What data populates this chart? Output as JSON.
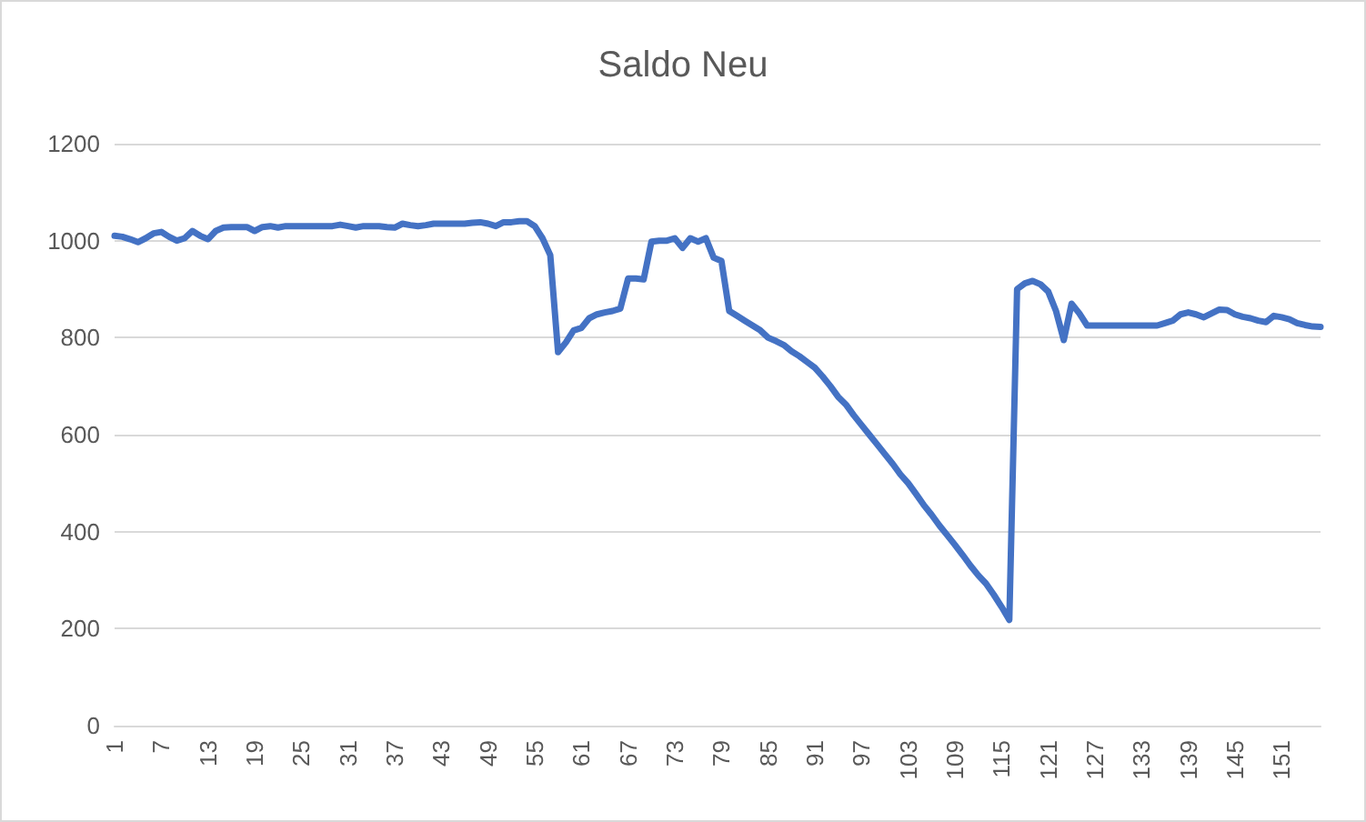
{
  "chart_data": {
    "type": "line",
    "title": "Saldo Neu",
    "categories": [
      "1",
      null,
      null,
      null,
      null,
      null,
      "7",
      null,
      null,
      null,
      null,
      null,
      "13",
      null,
      null,
      null,
      null,
      null,
      "19",
      null,
      null,
      null,
      null,
      null,
      "25",
      null,
      null,
      null,
      null,
      null,
      "31",
      null,
      null,
      null,
      null,
      null,
      "37",
      null,
      null,
      null,
      null,
      null,
      "43",
      null,
      null,
      null,
      null,
      null,
      "49",
      null,
      null,
      null,
      null,
      null,
      "55",
      null,
      null,
      null,
      null,
      null,
      "61",
      null,
      null,
      null,
      null,
      null,
      "67",
      null,
      null,
      null,
      null,
      null,
      "73",
      null,
      null,
      null,
      null,
      null,
      "79",
      null,
      null,
      null,
      null,
      null,
      "85",
      null,
      null,
      null,
      null,
      null,
      "91",
      null,
      null,
      null,
      null,
      null,
      "97",
      null,
      null,
      null,
      null,
      null,
      "103",
      null,
      null,
      null,
      null,
      null,
      "109",
      null,
      null,
      null,
      null,
      null,
      "115",
      null,
      null,
      null,
      null,
      null,
      "121",
      null,
      null,
      null,
      null,
      null,
      "127",
      null,
      null,
      null,
      null,
      null,
      "133",
      null,
      null,
      null,
      null,
      null,
      "139",
      null,
      null,
      null,
      null,
      null,
      "145",
      null,
      null,
      null,
      null,
      null,
      "151",
      null,
      null,
      null,
      null,
      null
    ],
    "series": [
      {
        "color": "#4472c4",
        "values": [
          1010,
          1008,
          1003,
          997,
          1005,
          1015,
          1018,
          1008,
          1000,
          1005,
          1020,
          1010,
          1003,
          1020,
          1027,
          1028,
          1028,
          1028,
          1020,
          1028,
          1030,
          1027,
          1030,
          1030,
          1030,
          1030,
          1030,
          1030,
          1030,
          1033,
          1030,
          1027,
          1030,
          1030,
          1030,
          1028,
          1027,
          1035,
          1032,
          1030,
          1032,
          1035,
          1035,
          1035,
          1035,
          1035,
          1037,
          1038,
          1035,
          1030,
          1038,
          1038,
          1040,
          1040,
          1030,
          1005,
          970,
          770,
          790,
          815,
          820,
          840,
          848,
          852,
          855,
          860,
          922,
          922,
          920,
          998,
          1000,
          1000,
          1005,
          985,
          1005,
          998,
          1005,
          965,
          958,
          855,
          845,
          835,
          825,
          815,
          800,
          793,
          785,
          772,
          762,
          750,
          738,
          720,
          700,
          678,
          662,
          640,
          620,
          600,
          580,
          560,
          540,
          518,
          500,
          478,
          455,
          435,
          413,
          393,
          373,
          352,
          330,
          310,
          293,
          270,
          245,
          218,
          900,
          912,
          917,
          910,
          895,
          855,
          795,
          870,
          850,
          825,
          825,
          825,
          825,
          825,
          825,
          825,
          825,
          825,
          825,
          830,
          835,
          848,
          852,
          848,
          842,
          850,
          858,
          857,
          848,
          843,
          840,
          835,
          832,
          845,
          842,
          838,
          830,
          826,
          823,
          822
        ]
      }
    ],
    "ylim": [
      0,
      1200
    ],
    "yticks": [
      0,
      200,
      400,
      600,
      800,
      1000,
      1200
    ],
    "grid": "y",
    "marker": "none",
    "line_style": "solid"
  }
}
